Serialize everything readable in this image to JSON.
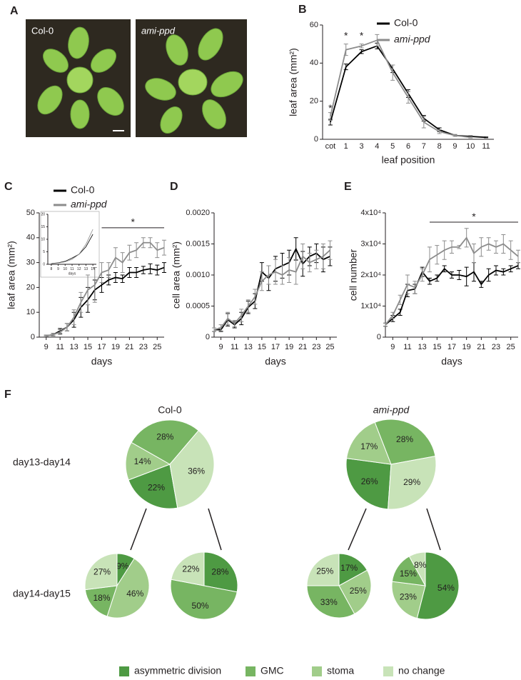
{
  "panel_labels": [
    "A",
    "B",
    "C",
    "D",
    "E",
    "F"
  ],
  "photo": {
    "labels": [
      "Col-0",
      "ami-ppd"
    ]
  },
  "chart_data": [
    {
      "type": "line",
      "xlabel": "leaf position",
      "ylabel": "leaf area (mm²)",
      "categories": [
        "cot",
        "1",
        "3",
        "4",
        "5",
        "6",
        "7",
        "8",
        "9",
        "10",
        "11"
      ],
      "ylim": [
        0,
        60
      ],
      "yticks": [
        0,
        20,
        40,
        60
      ],
      "series": [
        {
          "name": "Col-0",
          "color": "#000000",
          "values": [
            9,
            38,
            46,
            49,
            37,
            24,
            11,
            5,
            2,
            1.5,
            1
          ],
          "errors": [
            1.5,
            1.5,
            1,
            1.5,
            2,
            2,
            1.5,
            1,
            0.5,
            0.3,
            0.2
          ]
        },
        {
          "name": "ami-ppd",
          "color": "#8c8c8c",
          "font_style": "italic",
          "values": [
            12,
            47,
            49,
            52,
            35,
            22,
            9,
            4,
            2,
            1,
            null
          ],
          "errors": [
            2,
            3,
            1,
            3,
            4,
            3,
            3,
            1,
            0.5,
            0.3,
            null
          ]
        }
      ],
      "annotations": [
        {
          "label": "*",
          "x": "cot",
          "y": 16
        },
        {
          "label": "*",
          "x": "1",
          "y": 54
        },
        {
          "label": "*",
          "x": "3",
          "y": 54
        }
      ]
    },
    {
      "type": "line",
      "xlabel": "days",
      "ylabel": "leaf area (mm²)",
      "x": [
        9,
        10,
        11,
        12,
        13,
        14,
        15,
        16,
        17,
        18,
        19,
        20,
        21,
        22,
        23,
        24,
        25,
        26
      ],
      "xlim": [
        8,
        26
      ],
      "xticks": [
        9,
        11,
        13,
        15,
        17,
        19,
        21,
        23,
        25
      ],
      "ylim": [
        0,
        50
      ],
      "yticks": [
        0,
        10,
        20,
        30,
        40,
        50
      ],
      "series": [
        {
          "name": "Col-0",
          "color": "#000000",
          "values": [
            0.5,
            1,
            2.5,
            4,
            7,
            12,
            15,
            19,
            21,
            23,
            24,
            23.5,
            26,
            26,
            27,
            27.5,
            27,
            28
          ],
          "errors": [
            0.3,
            0.5,
            1,
            1.5,
            3,
            4,
            5,
            4,
            3,
            2,
            2,
            1.5,
            2,
            2,
            1.5,
            2,
            2,
            2
          ]
        },
        {
          "name": "ami-ppd",
          "color": "#8c8c8c",
          "font_style": "italic",
          "values": [
            0.5,
            1,
            2,
            4,
            8,
            14,
            19,
            21,
            26,
            27,
            32,
            30,
            34,
            35,
            38,
            38,
            35,
            36
          ],
          "errors": [
            0.3,
            0.5,
            1,
            1.5,
            3,
            4,
            6,
            7,
            4,
            3,
            4,
            4,
            3,
            3,
            2,
            2,
            3,
            3
          ]
        }
      ],
      "significance": {
        "label": "*",
        "x": [
          17,
          26
        ],
        "y": 44
      }
    },
    {
      "type": "line",
      "xlabel": "days",
      "x": [
        8,
        9,
        10,
        11,
        12,
        13,
        14
      ],
      "xlim": [
        7.5,
        14.5
      ],
      "xticks": [
        8,
        9,
        10,
        11,
        12,
        13,
        14
      ],
      "ylim": [
        0,
        20
      ],
      "yticks": [
        0,
        5,
        10,
        15,
        20
      ],
      "series": [
        {
          "color": "#000000",
          "values": [
            0.3,
            0.6,
            1.2,
            2.5,
            4,
            7,
            12
          ]
        },
        {
          "color": "#8c8c8c",
          "values": [
            0.3,
            0.5,
            1,
            2,
            4,
            8,
            14
          ]
        }
      ]
    },
    {
      "type": "line",
      "xlabel": "days",
      "ylabel": "cell area (mm²)",
      "x": [
        8,
        9,
        10,
        11,
        12,
        13,
        14,
        15,
        16,
        17,
        18,
        19,
        20,
        21,
        22,
        23,
        24,
        25
      ],
      "xlim": [
        8,
        26
      ],
      "xticks": [
        9,
        11,
        13,
        15,
        17,
        19,
        21,
        23,
        25
      ],
      "ylim": [
        0,
        0.002
      ],
      "yticks": [
        0,
        0.0005,
        {
          "value": 0.001,
          "label": "0.0010"
        },
        0.0015,
        {
          "value": 0.002,
          "label": "0.0020"
        }
      ],
      "series": [
        {
          "color": "#000000",
          "values": [
            0.00012,
            0.00012,
            0.00028,
            0.0002,
            0.0003,
            0.00048,
            0.00058,
            0.00105,
            0.00095,
            0.0011,
            0.00115,
            0.0012,
            0.00142,
            0.00118,
            0.0013,
            0.00135,
            0.00125,
            0.0013
          ],
          "errors": [
            3e-05,
            3e-05,
            0.0001,
            5e-05,
            0.0001,
            0.0001,
            0.00012,
            0.00015,
            0.0002,
            0.0002,
            0.0002,
            0.0002,
            0.00018,
            0.0002,
            0.00015,
            0.00015,
            0.0002,
            0.00015
          ]
        },
        {
          "color": "#8c8c8c",
          "values": [
            0.00012,
            0.00015,
            0.0003,
            0.00022,
            0.00035,
            0.0005,
            0.00065,
            0.0009,
            0.001,
            0.00105,
            0.001,
            0.00108,
            0.00105,
            0.0013,
            0.0012,
            0.00125,
            0.0013,
            0.0014
          ],
          "errors": [
            3e-05,
            5e-05,
            0.0001,
            5e-05,
            0.0001,
            0.0001,
            0.00012,
            0.00015,
            0.00015,
            0.0002,
            0.00015,
            0.0002,
            0.0002,
            0.0002,
            0.00015,
            0.00015,
            0.0002,
            0.00015
          ]
        }
      ]
    },
    {
      "type": "line",
      "xlabel": "days",
      "ylabel": "cell number",
      "x": [
        8,
        9,
        10,
        11,
        12,
        13,
        14,
        15,
        16,
        17,
        18,
        19,
        20,
        21,
        22,
        23,
        24,
        25,
        26
      ],
      "xlim": [
        8,
        26
      ],
      "xticks": [
        9,
        11,
        13,
        15,
        17,
        19,
        21,
        23,
        25
      ],
      "ylim": [
        0,
        40000
      ],
      "yticks": [
        0,
        {
          "value": 10000,
          "label": "1x10⁴"
        },
        {
          "value": 20000,
          "label": "2x10⁴"
        },
        {
          "value": 30000,
          "label": "3x10⁴"
        },
        {
          "value": 40000,
          "label": "4x10⁴"
        }
      ],
      "series": [
        {
          "color": "#000000",
          "values": [
            4000,
            6000,
            8000,
            15000,
            15500,
            21000,
            18000,
            19000,
            22000,
            20000,
            20000,
            19500,
            21000,
            17000,
            20000,
            21500,
            21000,
            22000,
            23000
          ],
          "errors": [
            500,
            1000,
            1000,
            2000,
            1500,
            1500,
            1000,
            1000,
            1000,
            1000,
            1500,
            3000,
            3000,
            1000,
            2000,
            1500,
            1000,
            1000,
            1000
          ]
        },
        {
          "color": "#8c8c8c",
          "values": [
            4000,
            7000,
            12000,
            17000,
            16000,
            20000,
            25000,
            26500,
            28000,
            29000,
            29000,
            32000,
            27000,
            29000,
            30000,
            29000,
            30000,
            28000,
            26000
          ],
          "errors": [
            500,
            1000,
            1500,
            3000,
            2000,
            2000,
            4000,
            3000,
            3000,
            2000,
            500,
            3000,
            3000,
            3000,
            2000,
            2000,
            3000,
            3000,
            2000
          ]
        }
      ],
      "significance": {
        "label": "*",
        "x": [
          14,
          26
        ],
        "y": 37000
      }
    },
    {
      "type": "pie",
      "categories": [
        "asymmetric division",
        "GMC",
        "stoma",
        "no change"
      ],
      "colors": [
        "#4e9a43",
        "#77b562",
        "#a1cd8a",
        "#c8e3b8"
      ],
      "column_titles": [
        "Col-0",
        "ami-ppd"
      ],
      "row_labels": [
        "day13-day14",
        "day14-day15"
      ],
      "pies": [
        {
          "values": [
            22,
            28,
            14,
            36
          ],
          "value_labels": [
            "22%",
            "28%",
            "14%",
            "36%"
          ]
        },
        {
          "values": [
            26,
            28,
            17,
            29
          ],
          "value_labels": [
            "26%",
            "28%",
            "17%",
            "29%"
          ]
        },
        {
          "values": [
            9,
            18,
            46,
            27
          ],
          "value_labels": [
            "9%",
            "18%",
            "46%",
            "27%"
          ]
        },
        {
          "values": [
            28,
            50,
            0,
            22
          ],
          "value_labels": [
            "28%",
            "50%",
            null,
            "22%"
          ]
        },
        {
          "values": [
            17,
            33,
            25,
            25
          ],
          "value_labels": [
            "17%",
            "33%",
            "25%",
            "25%"
          ]
        },
        {
          "values": [
            54,
            15,
            23,
            8
          ],
          "value_labels": [
            "54%",
            "15%",
            "23%",
            "8%"
          ]
        }
      ]
    }
  ]
}
